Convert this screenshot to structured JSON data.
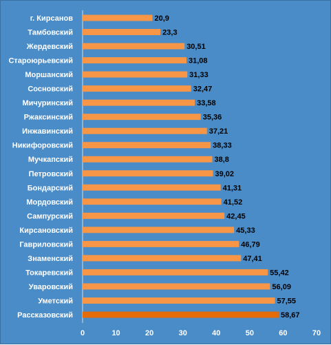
{
  "chart_data": {
    "type": "bar",
    "orientation": "horizontal",
    "categories": [
      "г. Кирсанов",
      "Тамбовский",
      "Жердевский",
      "Староюрьевский",
      "Моршанский",
      "Сосновский",
      "Мичуринский",
      "Ржаксинский",
      "Инжавинский",
      "Никифоровский",
      "Мучкапский",
      "Петровский",
      "Бондарский",
      "Мордовский",
      "Сампурский",
      "Кирсановский",
      "Гавриловский",
      "Знаменский",
      "Токаревский",
      "Уваровский",
      "Уметский",
      "Рассказовский"
    ],
    "values": [
      20.9,
      23.3,
      30.51,
      31.08,
      31.33,
      32.47,
      33.58,
      35.36,
      37.21,
      38.33,
      38.8,
      39.02,
      41.31,
      41.52,
      42.45,
      45.33,
      46.79,
      47.41,
      55.42,
      56.09,
      57.55,
      58.67
    ],
    "value_labels": [
      "20,9",
      "23,3",
      "30,51",
      "31,08",
      "31,33",
      "32,47",
      "33,58",
      "35,36",
      "37,21",
      "38,33",
      "38,8",
      "39,02",
      "41,31",
      "41,52",
      "42,45",
      "45,33",
      "46,79",
      "47,41",
      "55,42",
      "56,09",
      "57,55",
      "58,67"
    ],
    "xlim": [
      0,
      70
    ],
    "xticks": [
      0,
      10,
      20,
      30,
      40,
      50,
      60,
      70
    ],
    "xtick_labels": [
      "0",
      "10",
      "20",
      "30",
      "40",
      "50",
      "60",
      "70"
    ],
    "grid": false,
    "legend": "none",
    "highlight_index": 21
  },
  "colors": {
    "background": "#4a8cc8",
    "bar": "#f79646",
    "bar_highlight": "#e36c09",
    "axis_line": "#d9d9d9"
  }
}
